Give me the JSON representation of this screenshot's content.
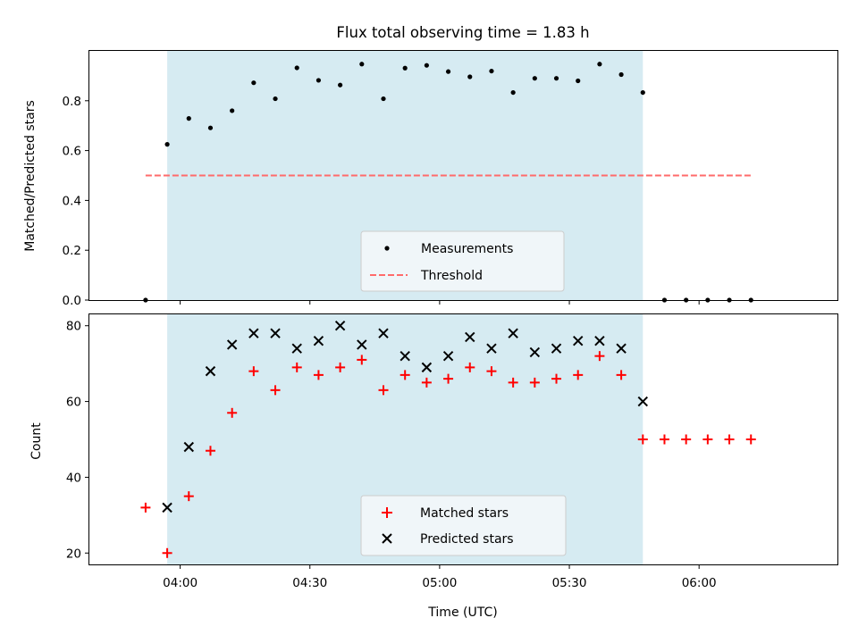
{
  "chart_data": [
    {
      "type": "scatter",
      "title": "Flux total observing time = 1.83 h",
      "ylabel": "Matched/Predicted stars",
      "ylim": [
        0,
        1.0
      ],
      "yticks": [
        0.0,
        0.2,
        0.4,
        0.6,
        0.8
      ],
      "ytick_labels": [
        "0.0",
        "0.2",
        "0.4",
        "0.6",
        "0.8"
      ],
      "shaded_interval": {
        "start": "03:57",
        "end": "05:47",
        "color": "#add8e6"
      },
      "threshold": {
        "name": "Threshold",
        "value": 0.5,
        "start": "03:52",
        "end": "06:12",
        "color": "#ff6b6b"
      },
      "series": [
        {
          "name": "Measurements",
          "color": "#000000",
          "x": [
            "03:52",
            "03:57",
            "04:02",
            "04:07",
            "04:12",
            "04:17",
            "04:22",
            "04:27",
            "04:32",
            "04:37",
            "04:42",
            "04:47",
            "04:52",
            "04:57",
            "05:02",
            "05:07",
            "05:12",
            "05:17",
            "05:22",
            "05:27",
            "05:32",
            "05:37",
            "05:42",
            "05:47",
            "05:52",
            "05:57",
            "06:02",
            "06:07",
            "06:12"
          ],
          "y": [
            0.0,
            0.625,
            0.729,
            0.691,
            0.76,
            0.872,
            0.808,
            0.932,
            0.882,
            0.863,
            0.947,
            0.808,
            0.931,
            0.942,
            0.917,
            0.896,
            0.919,
            0.833,
            0.89,
            0.89,
            0.88,
            0.947,
            0.905,
            0.833,
            0.0,
            0.0,
            0.0,
            0.0,
            0.0
          ]
        }
      ],
      "legend": {
        "placement": "lower-center",
        "entries": [
          "Measurements",
          "Threshold"
        ]
      }
    },
    {
      "type": "scatter",
      "xlabel": "Time (UTC)",
      "ylabel": "Count",
      "ylim": [
        17,
        83
      ],
      "yticks": [
        20,
        40,
        60,
        80
      ],
      "ytick_labels": [
        "20",
        "40",
        "60",
        "80"
      ],
      "xticks": [
        "04:00",
        "04:30",
        "05:00",
        "05:30",
        "06:00"
      ],
      "shaded_interval": {
        "start": "03:57",
        "end": "05:47",
        "color": "#add8e6"
      },
      "series": [
        {
          "name": "Matched stars",
          "color": "#ff0000",
          "marker": "+",
          "x": [
            "03:52",
            "03:57",
            "04:02",
            "04:07",
            "04:12",
            "04:17",
            "04:22",
            "04:27",
            "04:32",
            "04:37",
            "04:42",
            "04:47",
            "04:52",
            "04:57",
            "05:02",
            "05:07",
            "05:12",
            "05:17",
            "05:22",
            "05:27",
            "05:32",
            "05:37",
            "05:42",
            "05:47",
            "05:52",
            "05:57",
            "06:02",
            "06:07",
            "06:12"
          ],
          "y": [
            32,
            20,
            35,
            47,
            57,
            68,
            63,
            69,
            67,
            69,
            71,
            63,
            67,
            65,
            66,
            69,
            68,
            65,
            65,
            66,
            67,
            72,
            67,
            50,
            50,
            50,
            50,
            50,
            50
          ]
        },
        {
          "name": "Predicted stars",
          "color": "#000000",
          "marker": "x",
          "x": [
            "03:57",
            "04:02",
            "04:07",
            "04:12",
            "04:17",
            "04:22",
            "04:27",
            "04:32",
            "04:37",
            "04:42",
            "04:47",
            "04:52",
            "04:57",
            "05:02",
            "05:07",
            "05:12",
            "05:17",
            "05:22",
            "05:27",
            "05:32",
            "05:37",
            "05:42",
            "05:47"
          ],
          "y": [
            32,
            48,
            68,
            75,
            78,
            78,
            74,
            76,
            80,
            75,
            78,
            72,
            69,
            72,
            77,
            74,
            78,
            73,
            74,
            76,
            76,
            74,
            60
          ]
        }
      ],
      "legend": {
        "placement": "lower-center",
        "entries": [
          "Matched stars",
          "Predicted stars"
        ]
      }
    }
  ]
}
